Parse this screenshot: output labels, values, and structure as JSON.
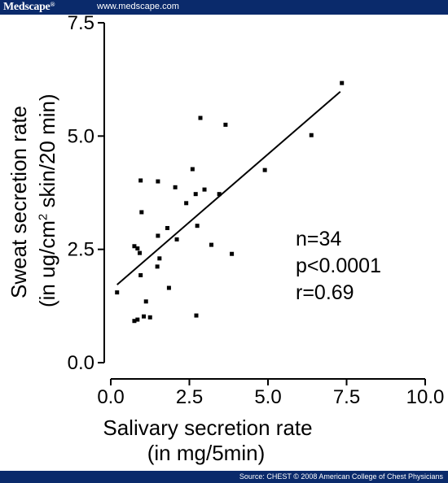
{
  "header": {
    "brand": "Medscape",
    "brand_mark": "®",
    "url": "www.medscape.com"
  },
  "footer": {
    "source": "Source: CHEST © 2008 American College of Chest Physicians"
  },
  "chart_data": {
    "type": "scatter",
    "xlabel_line1": "Salivary secretion rate",
    "xlabel_line2": "(in mg/5min)",
    "ylabel_line1": "Sweat secretion rate",
    "ylabel_line2_pre": "(in ug/cm",
    "ylabel_line2_sup": "2",
    "ylabel_line2_post": " skin/20 min)",
    "xlim": [
      0,
      10
    ],
    "ylim": [
      0,
      7.5
    ],
    "x_ticks": [
      "0.0",
      "2.5",
      "5.0",
      "7.5",
      "10.0"
    ],
    "x_tick_values": [
      0,
      2.5,
      5,
      7.5,
      10
    ],
    "y_ticks": [
      "0.0",
      "2.5",
      "5.0",
      "7.5"
    ],
    "y_tick_values": [
      0,
      2.5,
      5,
      7.5
    ],
    "points": [
      [
        0.2,
        1.55
      ],
      [
        0.75,
        2.57
      ],
      [
        0.85,
        2.52
      ],
      [
        0.92,
        2.42
      ],
      [
        0.95,
        1.93
      ],
      [
        0.75,
        0.92
      ],
      [
        0.85,
        0.95
      ],
      [
        1.05,
        1.02
      ],
      [
        1.25,
        1.0
      ],
      [
        1.12,
        1.35
      ],
      [
        0.98,
        3.32
      ],
      [
        0.95,
        4.02
      ],
      [
        1.5,
        4.0
      ],
      [
        1.5,
        2.8
      ],
      [
        1.55,
        2.3
      ],
      [
        1.48,
        2.12
      ],
      [
        1.8,
        2.97
      ],
      [
        1.85,
        1.65
      ],
      [
        2.05,
        3.87
      ],
      [
        2.1,
        2.72
      ],
      [
        2.4,
        3.52
      ],
      [
        2.6,
        4.27
      ],
      [
        2.7,
        3.72
      ],
      [
        2.75,
        3.02
      ],
      [
        2.72,
        1.04
      ],
      [
        2.98,
        3.82
      ],
      [
        3.2,
        2.6
      ],
      [
        3.45,
        3.72
      ],
      [
        2.85,
        5.4
      ],
      [
        3.65,
        5.25
      ],
      [
        3.85,
        2.4
      ],
      [
        4.9,
        4.25
      ],
      [
        6.38,
        5.02
      ],
      [
        7.35,
        6.17
      ]
    ],
    "fit_line": {
      "x": [
        0.2,
        7.3
      ],
      "y": [
        1.72,
        5.98
      ]
    },
    "annotations": [
      "n=34",
      "p<0.0001",
      "r=0.69"
    ]
  }
}
